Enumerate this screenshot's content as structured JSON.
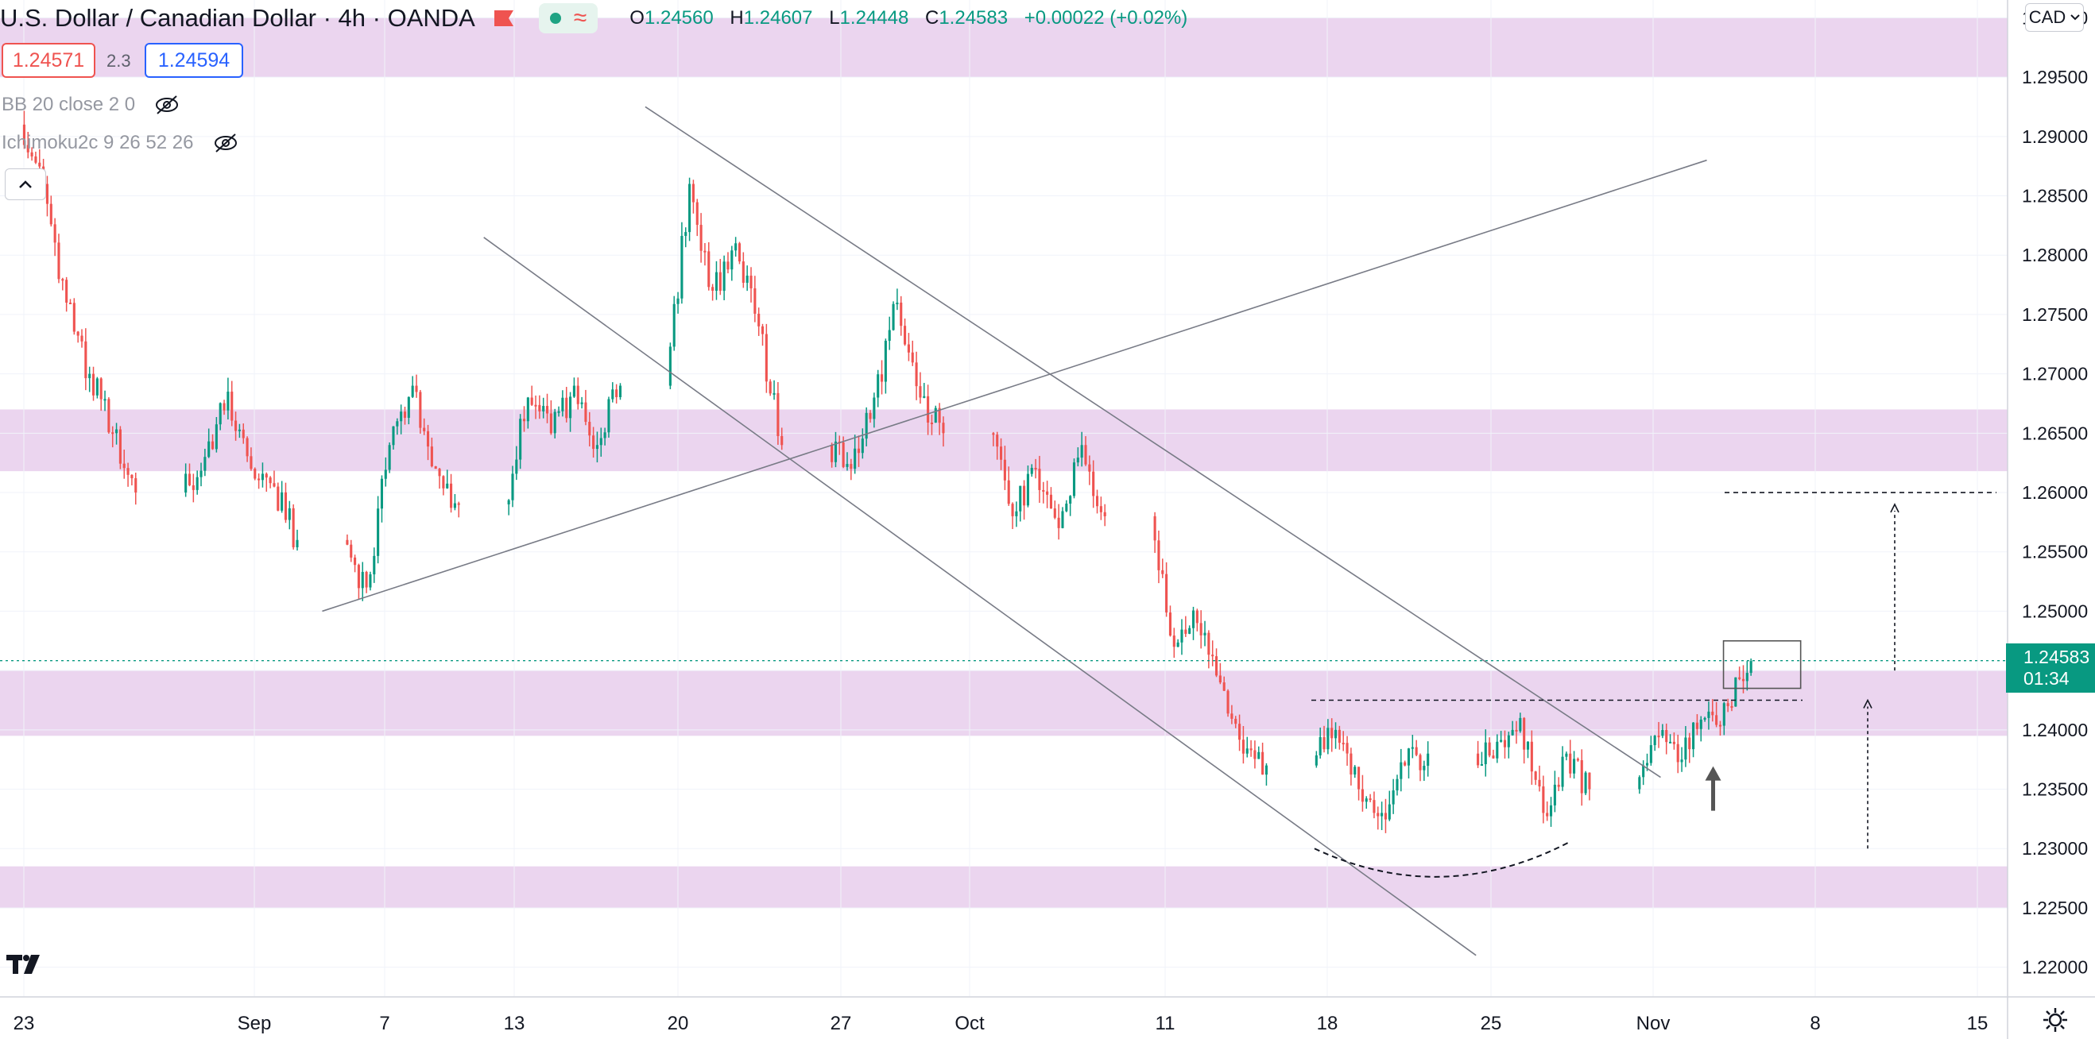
{
  "header": {
    "symbol_title": "U.S. Dollar / Canadian Dollar · 4h · OANDA",
    "ohlc": {
      "o_key": "O",
      "o_val": "1.24560",
      "h_key": "H",
      "h_val": "1.24607",
      "l_key": "L",
      "l_val": "1.24448",
      "c_key": "C",
      "c_val": "1.24583",
      "change": "+0.00022 (+0.02%)"
    }
  },
  "trading": {
    "sell_price": "1.24571",
    "spread": "2.3",
    "buy_price": "1.24594"
  },
  "indicators": [
    {
      "label": "BB 20 close 2 0",
      "icon": "eye-off-icon"
    },
    {
      "label": "Ichimoku2c 9 26 52 26",
      "icon": "eye-off-icon"
    }
  ],
  "currency_button": "CAD",
  "last_price": {
    "price": "1.24583",
    "countdown": "01:34"
  },
  "colors": {
    "up": "#089981",
    "down": "#ef5350",
    "zone": "#e1bee7",
    "accent_blue": "#2962ff"
  },
  "chart_data": {
    "type": "candlestick",
    "y_axis_ticks": [
      "1.30000",
      "1.29500",
      "1.29000",
      "1.28500",
      "1.28000",
      "1.27500",
      "1.27000",
      "1.26500",
      "1.26000",
      "1.25500",
      "1.25000",
      "1.24500",
      "1.24000",
      "1.23500",
      "1.23000",
      "1.22500",
      "1.22000"
    ],
    "x_axis_ticks": [
      "23",
      "Sep",
      "7",
      "13",
      "20",
      "27",
      "Oct",
      "11",
      "18",
      "25",
      "Nov",
      "8",
      "15"
    ],
    "ylim": [
      1.2175,
      1.3015
    ],
    "zones": [
      {
        "low": 1.295,
        "high": 1.3
      },
      {
        "low": 1.2618,
        "high": 1.267
      },
      {
        "low": 1.2395,
        "high": 1.245
      },
      {
        "low": 1.225,
        "high": 1.2285
      }
    ],
    "trendlines": [
      {
        "from": [
          "Sep 5",
          1.25
        ],
        "to": [
          "Nov 4",
          1.288
        ],
        "label": ""
      },
      {
        "from": [
          "Sep 12",
          1.2815
        ],
        "to": [
          "Oct 25",
          1.221
        ]
      },
      {
        "from": [
          "Sep 19",
          1.2925
        ],
        "to": [
          "Nov 2",
          1.236
        ]
      }
    ],
    "levels": [
      {
        "price": 1.2425,
        "style": "dashed"
      },
      {
        "price": 1.26,
        "style": "dashed"
      }
    ],
    "candles": [
      {
        "date": "Aug 23",
        "open": 1.291,
        "close": 1.286
      },
      {
        "date": "Aug 24",
        "open": 1.286,
        "close": 1.276
      },
      {
        "date": "Aug 25",
        "open": 1.276,
        "close": 1.27
      },
      {
        "date": "Aug 26",
        "open": 1.27,
        "close": 1.265
      },
      {
        "date": "Aug 27",
        "open": 1.265,
        "close": 1.26
      },
      {
        "date": "Aug 30",
        "open": 1.26,
        "close": 1.263
      },
      {
        "date": "Aug 31",
        "open": 1.263,
        "close": 1.2685
      },
      {
        "date": "Sep 1",
        "open": 1.2685,
        "close": 1.262
      },
      {
        "date": "Sep 2",
        "open": 1.262,
        "close": 1.2605
      },
      {
        "date": "Sep 3",
        "open": 1.2605,
        "close": 1.256
      },
      {
        "date": "Sep 6",
        "open": 1.256,
        "close": 1.252
      },
      {
        "date": "Sep 7",
        "open": 1.252,
        "close": 1.264
      },
      {
        "date": "Sep 8",
        "open": 1.264,
        "close": 1.269
      },
      {
        "date": "Sep 9",
        "open": 1.269,
        "close": 1.262
      },
      {
        "date": "Sep 10",
        "open": 1.262,
        "close": 1.259
      },
      {
        "date": "Sep 13",
        "open": 1.259,
        "close": 1.268
      },
      {
        "date": "Sep 14",
        "open": 1.268,
        "close": 1.265
      },
      {
        "date": "Sep 15",
        "open": 1.265,
        "close": 1.269
      },
      {
        "date": "Sep 16",
        "open": 1.269,
        "close": 1.264
      },
      {
        "date": "Sep 17",
        "open": 1.264,
        "close": 1.269
      },
      {
        "date": "Sep 20",
        "open": 1.269,
        "close": 1.286
      },
      {
        "date": "Sep 21",
        "open": 1.286,
        "close": 1.277
      },
      {
        "date": "Sep 22",
        "open": 1.277,
        "close": 1.281
      },
      {
        "date": "Sep 23",
        "open": 1.281,
        "close": 1.274
      },
      {
        "date": "Sep 24",
        "open": 1.274,
        "close": 1.264
      },
      {
        "date": "Sep 27",
        "open": 1.264,
        "close": 1.262
      },
      {
        "date": "Sep 28",
        "open": 1.262,
        "close": 1.268
      },
      {
        "date": "Sep 29",
        "open": 1.268,
        "close": 1.276
      },
      {
        "date": "Sep 30",
        "open": 1.276,
        "close": 1.268
      },
      {
        "date": "Oct 1",
        "open": 1.268,
        "close": 1.265
      },
      {
        "date": "Oct 4",
        "open": 1.265,
        "close": 1.258
      },
      {
        "date": "Oct 5",
        "open": 1.258,
        "close": 1.262
      },
      {
        "date": "Oct 6",
        "open": 1.262,
        "close": 1.257
      },
      {
        "date": "Oct 7",
        "open": 1.257,
        "close": 1.264
      },
      {
        "date": "Oct 8",
        "open": 1.264,
        "close": 1.258
      },
      {
        "date": "Oct 11",
        "open": 1.258,
        "close": 1.247
      },
      {
        "date": "Oct 12",
        "open": 1.247,
        "close": 1.249
      },
      {
        "date": "Oct 13",
        "open": 1.249,
        "close": 1.244
      },
      {
        "date": "Oct 14",
        "open": 1.244,
        "close": 1.238
      },
      {
        "date": "Oct 15",
        "open": 1.238,
        "close": 1.237
      },
      {
        "date": "Oct 18",
        "open": 1.237,
        "close": 1.24
      },
      {
        "date": "Oct 19",
        "open": 1.24,
        "close": 1.235
      },
      {
        "date": "Oct 20",
        "open": 1.235,
        "close": 1.233
      },
      {
        "date": "Oct 21",
        "open": 1.233,
        "close": 1.237
      },
      {
        "date": "Oct 22",
        "open": 1.237,
        "close": 1.238
      },
      {
        "date": "Oct 25",
        "open": 1.238,
        "close": 1.239
      },
      {
        "date": "Oct 26",
        "open": 1.239,
        "close": 1.241
      },
      {
        "date": "Oct 27",
        "open": 1.241,
        "close": 1.233
      },
      {
        "date": "Oct 28",
        "open": 1.233,
        "close": 1.238
      },
      {
        "date": "Oct 29",
        "open": 1.238,
        "close": 1.235
      },
      {
        "date": "Nov 1",
        "open": 1.235,
        "close": 1.2395
      },
      {
        "date": "Nov 2",
        "open": 1.2395,
        "close": 1.2375
      },
      {
        "date": "Nov 3",
        "open": 1.2375,
        "close": 1.241
      },
      {
        "date": "Nov 4",
        "open": 1.241,
        "close": 1.242
      },
      {
        "date": "Nov 5",
        "open": 1.242,
        "close": 1.2458
      }
    ],
    "annotations": [
      {
        "type": "rounded-bottom",
        "from": "Oct 18",
        "to": "Oct 29"
      },
      {
        "type": "arrow-up",
        "date": "Nov 4",
        "price": 1.236
      },
      {
        "type": "target-arrow",
        "from": 1.23,
        "to": 1.2425
      },
      {
        "type": "target-arrow",
        "from": 1.245,
        "to": 1.259
      },
      {
        "type": "box",
        "from_date": "Nov 5",
        "to_date": "Nov 8",
        "low": 1.2435,
        "high": 1.2475
      }
    ]
  }
}
